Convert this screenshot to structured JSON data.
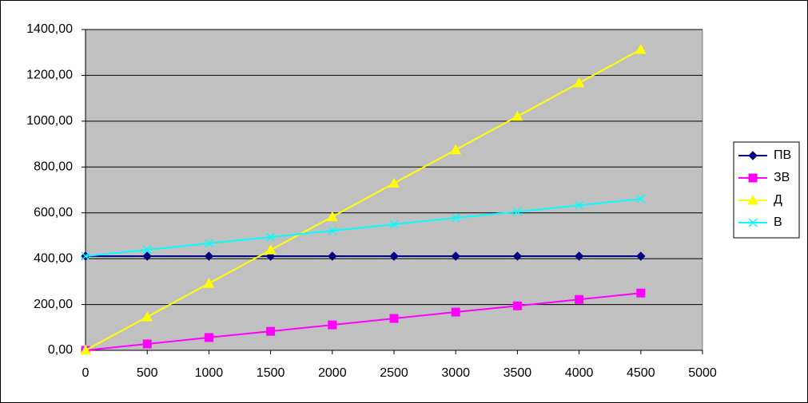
{
  "chart_data": {
    "type": "line",
    "x": [
      0,
      500,
      1000,
      1500,
      2000,
      2500,
      3000,
      3500,
      4000,
      4500
    ],
    "series": [
      {
        "name": "ПВ",
        "color": "#000080",
        "marker": "diamond",
        "values": [
          411,
          411,
          411,
          411,
          411,
          411,
          411,
          411,
          411,
          411
        ]
      },
      {
        "name": "ЗВ",
        "color": "#ff00ff",
        "marker": "square",
        "values": [
          0,
          28,
          56,
          83,
          111,
          139,
          167,
          194,
          222,
          250
        ]
      },
      {
        "name": "Д",
        "color": "#ffff00",
        "marker": "triangle",
        "values": [
          0,
          146,
          292,
          438,
          583,
          729,
          875,
          1021,
          1167,
          1313
        ]
      },
      {
        "name": "В",
        "color": "#00ffff",
        "marker": "x",
        "values": [
          411,
          439,
          467,
          494,
          522,
          550,
          578,
          605,
          633,
          661
        ]
      }
    ],
    "xlim": [
      0,
      5000
    ],
    "xticks": [
      0,
      500,
      1000,
      1500,
      2000,
      2500,
      3000,
      3500,
      4000,
      4500,
      5000
    ],
    "ylim": [
      0,
      1400
    ],
    "yticks": [
      {
        "value": 0,
        "label": "0,00"
      },
      {
        "value": 200,
        "label": "200,00"
      },
      {
        "value": 400,
        "label": "400,00"
      },
      {
        "value": 600,
        "label": "600,00"
      },
      {
        "value": 800,
        "label": "800,00"
      },
      {
        "value": 1000,
        "label": "1000,00"
      },
      {
        "value": 1200,
        "label": "1200,00"
      },
      {
        "value": 1400,
        "label": "1400,00"
      }
    ],
    "grid": true,
    "legend": "right",
    "plot_background": "#c0c0c0"
  }
}
